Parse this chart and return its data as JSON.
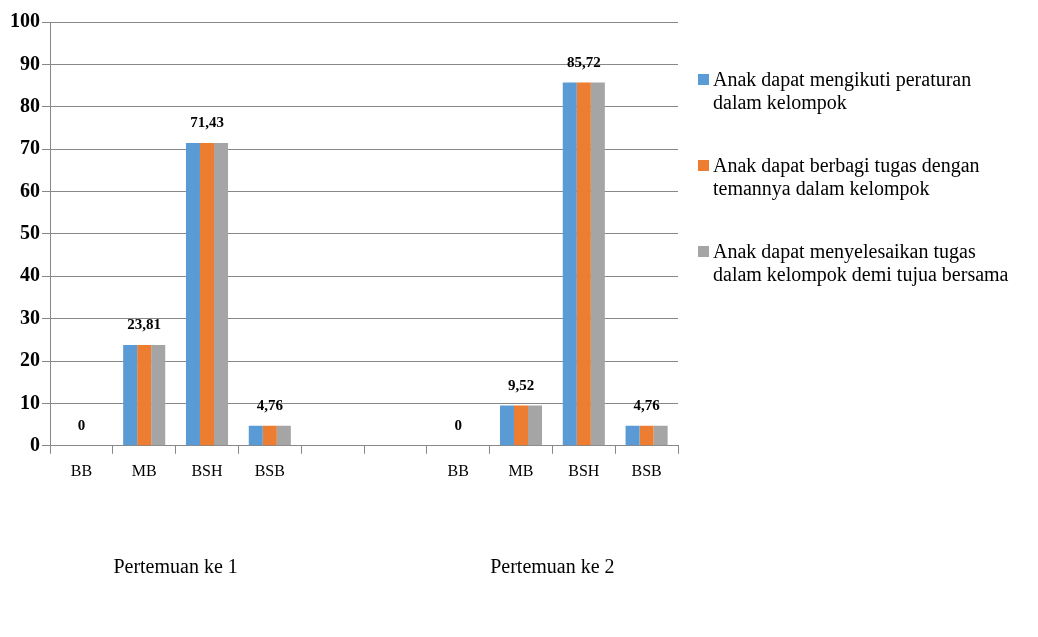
{
  "chart_data": {
    "type": "bar",
    "categories": [
      "BB",
      "MB",
      "BSH",
      "BSB",
      null,
      null,
      "BB",
      "MB",
      "BSH",
      "BSB"
    ],
    "series": [
      {
        "name": "Anak dapat mengikuti peraturan dalam kelompok",
        "color": "#5b9bd5",
        "values": [
          0,
          23.81,
          71.43,
          4.76,
          null,
          null,
          0,
          9.52,
          85.72,
          4.76
        ]
      },
      {
        "name": "Anak dapat berbagi tugas dengan temannya dalam kelompok",
        "color": "#ed7d31",
        "values": [
          0,
          23.81,
          71.43,
          4.76,
          null,
          null,
          0,
          9.52,
          85.72,
          4.76
        ],
        "value_labels": [
          "0",
          "23,81",
          "71,43",
          "4,76",
          null,
          null,
          "0",
          "9,52",
          "85,72",
          "4,76"
        ]
      },
      {
        "name": "Anak dapat menyelesaikan tugas dalam kelompok demi tujua bersama",
        "color": "#a5a5a5",
        "values": [
          0,
          23.81,
          71.43,
          4.76,
          null,
          null,
          0,
          9.52,
          85.72,
          4.76
        ]
      }
    ],
    "ylim": [
      0,
      100
    ],
    "yticks": [
      0,
      10,
      20,
      30,
      40,
      50,
      60,
      70,
      80,
      90,
      100
    ],
    "grid": "y",
    "legend": "right",
    "annotations": [
      "Pertemuan ke 1",
      "Pertemuan ke 2"
    ]
  }
}
